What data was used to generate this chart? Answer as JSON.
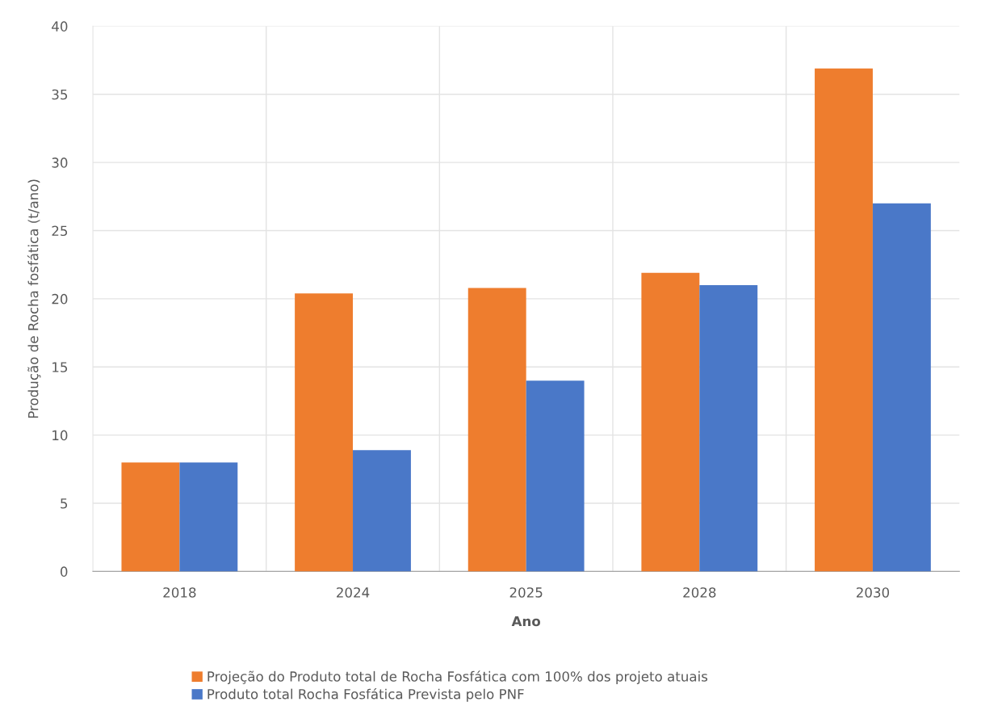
{
  "chart_data": {
    "type": "bar",
    "xlabel": "Ano",
    "ylabel": "Produção de Rocha fosfática (t/ano)",
    "categories": [
      "2018",
      "2024",
      "2025",
      "2028",
      "2030"
    ],
    "series": [
      {
        "name": "Projeção do Produto total de Rocha Fosfática com 100% dos projeto atuais",
        "color": "#ee7d2e",
        "values": [
          8,
          20.4,
          20.8,
          21.9,
          36.9
        ]
      },
      {
        "name": "Produto total Rocha Fosfática Prevista pelo PNF",
        "color": "#4a78c8",
        "values": [
          8,
          8.9,
          14,
          21,
          27
        ]
      }
    ],
    "ylim": [
      0,
      40
    ],
    "yticks": [
      0,
      5,
      10,
      15,
      20,
      25,
      30,
      35,
      40
    ],
    "grid": true,
    "legend": "bottom"
  }
}
